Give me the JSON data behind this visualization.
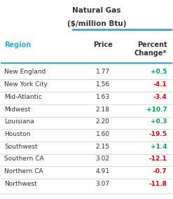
{
  "title_line1": "Natural Gas",
  "title_line2": "($/million Btu)",
  "col_region": "Region",
  "col_price": "Price",
  "col_change": "Percent\nChange*",
  "regions": [
    "New England",
    "New York City",
    "Mid-Atlantic",
    "Midwest",
    "Louisiana",
    "Houston",
    "Southwest",
    "Southern CA",
    "Northern CA",
    "Northwest"
  ],
  "prices": [
    "1.77",
    "1.56",
    "1.63",
    "2.18",
    "2.20",
    "1.60",
    "2.15",
    "3.02",
    "4.91",
    "3.07"
  ],
  "changes": [
    "+0.5",
    "-4.1",
    "-3.4",
    "+10.7",
    "+0.3",
    "-19.5",
    "+1.4",
    "-12.1",
    "-0.7",
    "-11.8"
  ],
  "change_colors": [
    "#00a550",
    "#e8000d",
    "#e8000d",
    "#00a550",
    "#00a550",
    "#e8000d",
    "#00a550",
    "#e8000d",
    "#e8000d",
    "#e8000d"
  ],
  "header_color": "#29ABE2",
  "bg_color": "#ffffff",
  "row_line_color": "#cccccc",
  "title_bar_color": "#29ABE2",
  "text_color_dark": "#333333",
  "region_header_color": "#29ABE2"
}
